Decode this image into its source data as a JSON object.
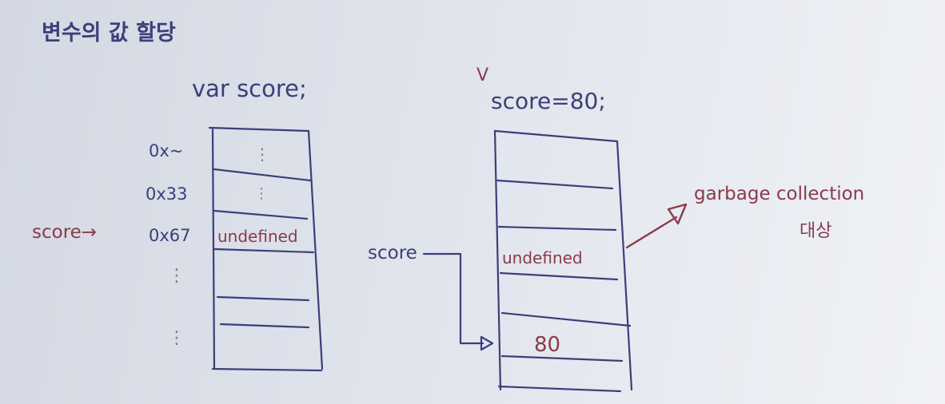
{
  "title": "변수의 값 할당",
  "left_diagram": {
    "code": "var score;",
    "addresses": [
      "0x~",
      "0x33",
      "0x67"
    ],
    "pointer_label": "score→",
    "cells": [
      "⋮",
      "⋮",
      "undefined",
      "",
      "",
      ""
    ],
    "dots": "⋮"
  },
  "right_diagram": {
    "mark": "V",
    "code": "score=80;",
    "pointer_label": "score",
    "cells": [
      "",
      "",
      "undefined",
      "",
      "80",
      ""
    ],
    "gc_label_1": "garbage collection",
    "gc_label_2": "대상"
  },
  "colors": {
    "ink_blue": "#3b3f7a",
    "ink_red": "#8a3a4c",
    "ink_gray": "#7c7f8a"
  }
}
